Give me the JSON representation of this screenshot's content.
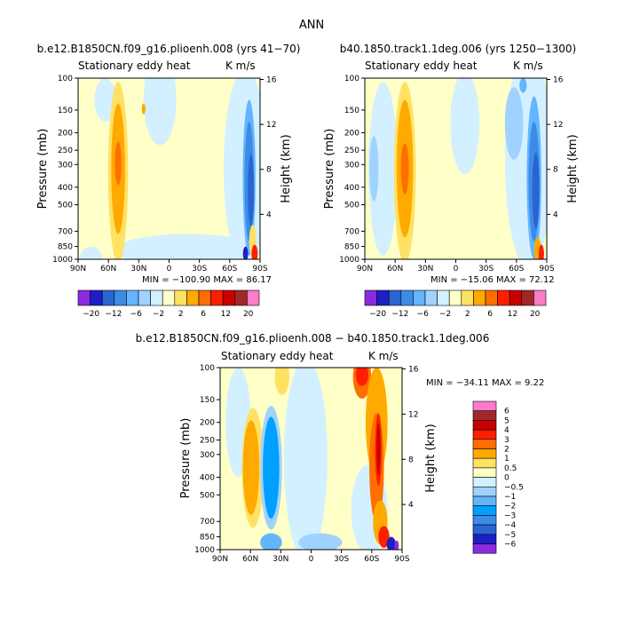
{
  "figure_title": "ANN",
  "colors": {
    "full_levels": [
      "#8a2be2",
      "#1e1ec8",
      "#2a64d2",
      "#3c8ce6",
      "#64b4ff",
      "#a0d2ff",
      "#d2f0ff",
      "#ffffc8",
      "#ffe164",
      "#ffaa00",
      "#ff6e00",
      "#ff1e00",
      "#c80000",
      "#a02828",
      "#ff7ac8"
    ],
    "diff_levels": [
      "#8a2be2",
      "#1e1ec8",
      "#2a64d2",
      "#3c8ce6",
      "#00a0ff",
      "#64b4ff",
      "#a0d2ff",
      "#d2f0ff",
      "#ffffc8",
      "#ffe164",
      "#ffaa00",
      "#ff6e00",
      "#ff1e00",
      "#c80000",
      "#a02828",
      "#ff7ac8"
    ]
  },
  "chart_data": [
    {
      "type": "heatmap",
      "title": "b.e12.B1850CN.f09_g16.plioenh.008 (yrs 41−70)",
      "left_label": "Stationary eddy heat",
      "right_label": "K m/s",
      "ylabel": "Pressure (mb)",
      "y2label": "Height (km)",
      "x_ticks": [
        "90N",
        "60N",
        "30N",
        "0",
        "30S",
        "60S",
        "90S"
      ],
      "y_ticks": [
        100,
        150,
        200,
        250,
        300,
        400,
        500,
        700,
        850,
        1000
      ],
      "y2_ticks": [
        4,
        8,
        12,
        16
      ],
      "min_max_text": "MIN = −100.90   MAX =   86.17",
      "min": -100.9,
      "max": 86.17
    },
    {
      "type": "heatmap",
      "title": "b40.1850.track1.1deg.006 (yrs 1250−1300)",
      "left_label": "Stationary eddy heat",
      "right_label": "K m/s",
      "ylabel": "Pressure (mb)",
      "y2label": "Height (km)",
      "x_ticks": [
        "90N",
        "60N",
        "30N",
        "0",
        "30S",
        "60S",
        "90S"
      ],
      "y_ticks": [
        100,
        150,
        200,
        250,
        300,
        400,
        500,
        700,
        850,
        1000
      ],
      "y2_ticks": [
        4,
        8,
        12,
        16
      ],
      "min_max_text": "MIN = −15.06   MAX =   72.12",
      "min": -15.06,
      "max": 72.12
    },
    {
      "type": "heatmap",
      "title": "b.e12.B1850CN.f09_g16.plioenh.008 − b40.1850.track1.1deg.006",
      "left_label": "Stationary eddy heat",
      "right_label": "K m/s",
      "ylabel": "Pressure (mb)",
      "y2label": "Height (km)",
      "x_ticks": [
        "90N",
        "60N",
        "30N",
        "0",
        "30S",
        "60S",
        "90S"
      ],
      "y_ticks": [
        100,
        150,
        200,
        250,
        300,
        400,
        500,
        700,
        850,
        1000
      ],
      "y2_ticks": [
        4,
        8,
        12,
        16
      ],
      "min_max_text": "MIN = −34.11   MAX =    9.22",
      "min": -34.11,
      "max": 9.22
    }
  ],
  "colorbar_full": {
    "tick_labels": [
      "−20",
      "−12",
      "−6",
      "−2",
      "2",
      "6",
      "12",
      "20"
    ]
  },
  "colorbar_diff": {
    "tick_labels": [
      "6",
      "5",
      "4",
      "3",
      "2",
      "1",
      "0.5",
      "0",
      "−0.5",
      "−1",
      "−2",
      "−3",
      "−4",
      "−5",
      "−6"
    ]
  }
}
